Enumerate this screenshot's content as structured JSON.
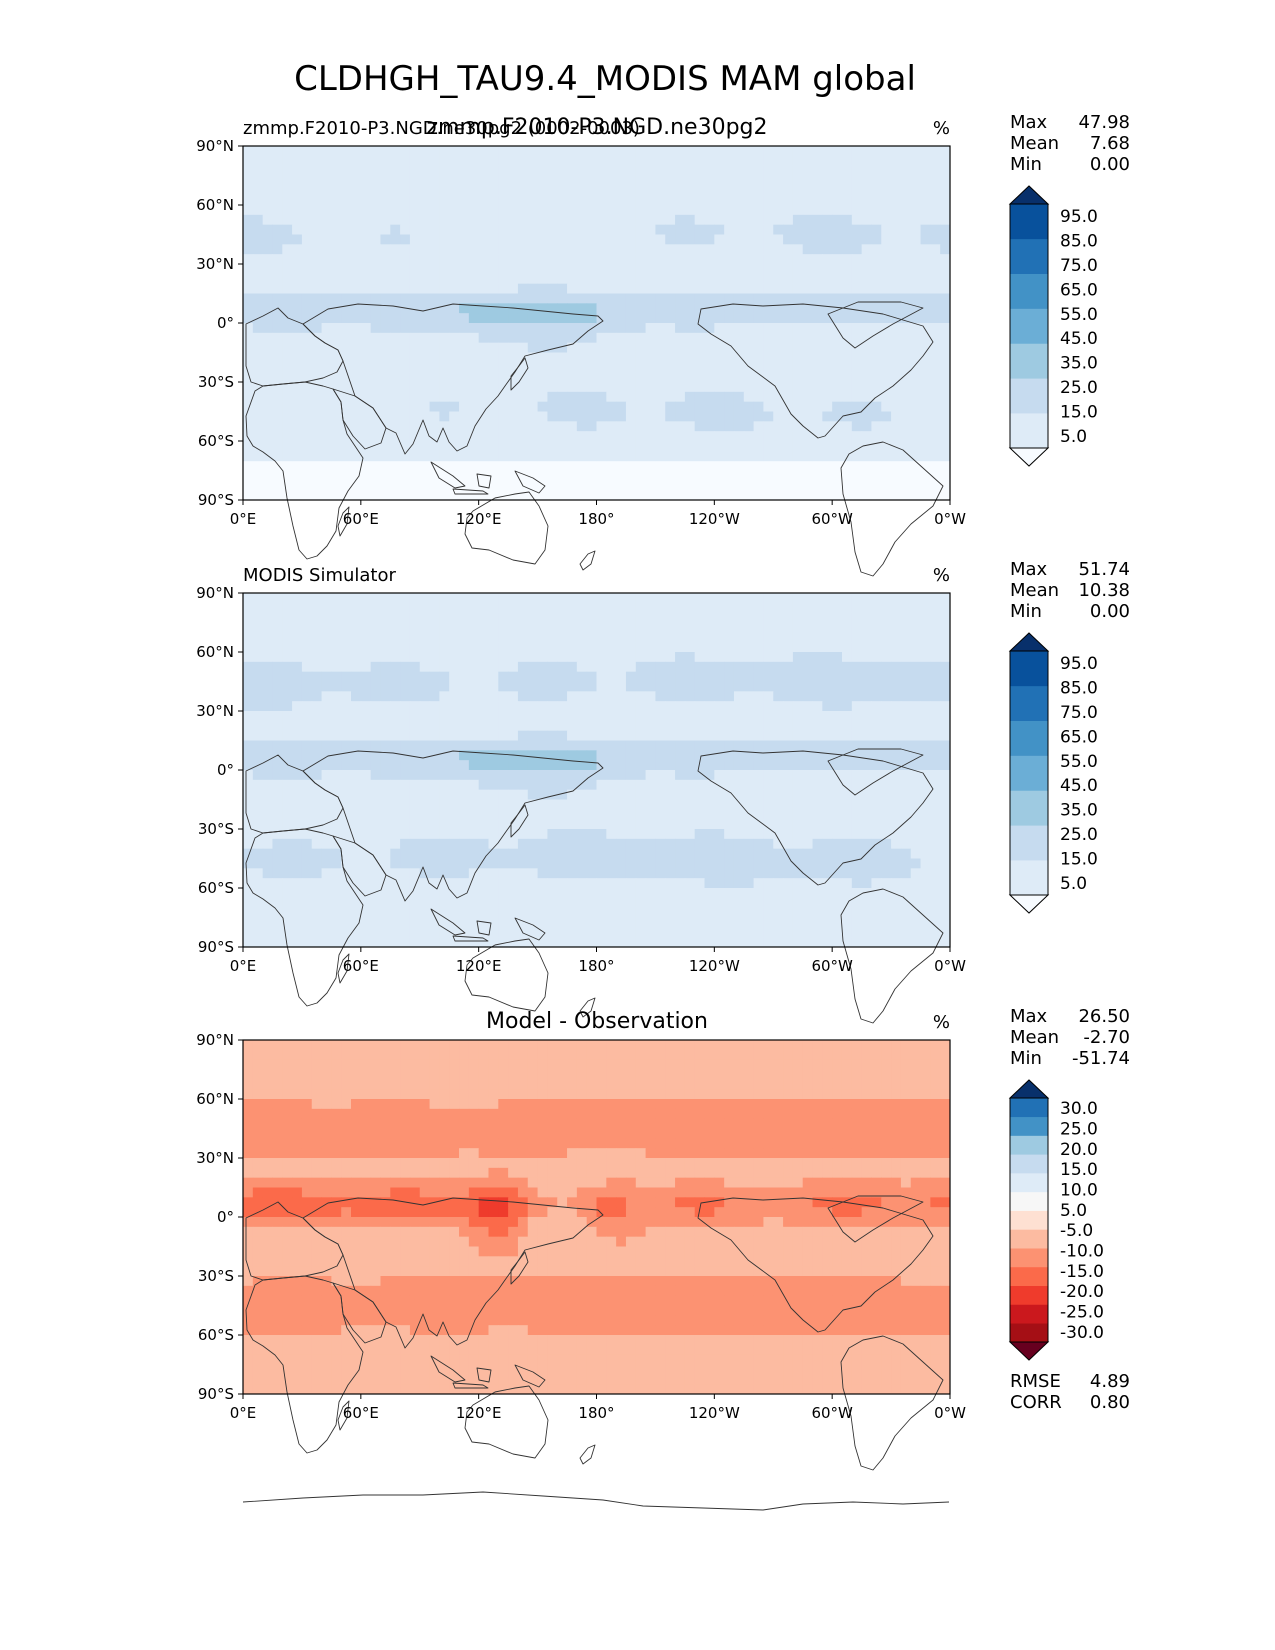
{
  "figure_title": "CLDHGH_TAU9.4_MODIS MAM global",
  "chart_data": [
    {
      "type": "heatmap",
      "left_label": "zmmp.F2010-P3.NGD.ne30pg2 (0002-0003)",
      "center_label": "zmmp.F2010-P3.NGD.ne30pg2",
      "units": "%",
      "stats": [
        {
          "label": "Max",
          "value": "47.98"
        },
        {
          "label": "Mean",
          "value": "7.68"
        },
        {
          "label": "Min",
          "value": "0.00"
        }
      ],
      "colorbar": {
        "colors": [
          "#f7fbff",
          "#deebf7",
          "#c6dbef",
          "#9ecae1",
          "#6baed6",
          "#4292c6",
          "#2171b5",
          "#08519c",
          "#08306b"
        ],
        "labels": [
          "5.0",
          "15.0",
          "25.0",
          "35.0",
          "45.0",
          "55.0",
          "65.0",
          "75.0",
          "85.0",
          "95.0"
        ]
      },
      "xticks": [
        "0°E",
        "60°E",
        "120°E",
        "180°",
        "120°W",
        "60°W",
        "0°W"
      ],
      "yticks": [
        "90°N",
        "60°N",
        "30°N",
        "0°",
        "30°S",
        "60°S",
        "90°S"
      ],
      "xlim": [
        0,
        360
      ],
      "ylim": [
        -90,
        90
      ]
    },
    {
      "type": "heatmap",
      "left_label": "MODIS Simulator",
      "center_label": "",
      "units": "%",
      "stats": [
        {
          "label": "Max",
          "value": "51.74"
        },
        {
          "label": "Mean",
          "value": "10.38"
        },
        {
          "label": "Min",
          "value": "0.00"
        }
      ],
      "colorbar": {
        "colors": [
          "#f7fbff",
          "#deebf7",
          "#c6dbef",
          "#9ecae1",
          "#6baed6",
          "#4292c6",
          "#2171b5",
          "#08519c",
          "#08306b"
        ],
        "labels": [
          "5.0",
          "15.0",
          "25.0",
          "35.0",
          "45.0",
          "55.0",
          "65.0",
          "75.0",
          "85.0",
          "95.0"
        ]
      },
      "xticks": [
        "0°E",
        "60°E",
        "120°E",
        "180°",
        "120°W",
        "60°W",
        "0°W"
      ],
      "yticks": [
        "90°N",
        "60°N",
        "30°N",
        "0°",
        "30°S",
        "60°S",
        "90°S"
      ],
      "xlim": [
        0,
        360
      ],
      "ylim": [
        -90,
        90
      ]
    },
    {
      "type": "heatmap",
      "left_label": "",
      "center_label": "Model - Observation",
      "units": "%",
      "stats": [
        {
          "label": "Max",
          "value": "26.50"
        },
        {
          "label": "Mean",
          "value": "-2.70"
        },
        {
          "label": "Min",
          "value": "-51.74"
        }
      ],
      "colorbar": {
        "colors": [
          "#67001f",
          "#a50f15",
          "#cb181d",
          "#ef3b2c",
          "#fb6a4a",
          "#fc9272",
          "#fcbba1",
          "#fee0d2",
          "#f7f7f7",
          "#deebf7",
          "#c6dbef",
          "#9ecae1",
          "#4292c6",
          "#2171b5",
          "#08306b"
        ],
        "labels": [
          "-30.0",
          "-25.0",
          "-20.0",
          "-15.0",
          "-10.0",
          "-5.0",
          "5.0",
          "10.0",
          "15.0",
          "20.0",
          "25.0",
          "30.0"
        ]
      },
      "metrics": [
        {
          "label": "RMSE",
          "value": "4.89"
        },
        {
          "label": "CORR",
          "value": "0.80"
        }
      ],
      "xticks": [
        "0°E",
        "60°E",
        "120°E",
        "180°",
        "120°W",
        "60°W",
        "0°W"
      ],
      "yticks": [
        "90°N",
        "60°N",
        "30°N",
        "0°",
        "30°S",
        "60°S",
        "90°S"
      ],
      "xlim": [
        0,
        360
      ],
      "ylim": [
        -90,
        90
      ]
    }
  ]
}
